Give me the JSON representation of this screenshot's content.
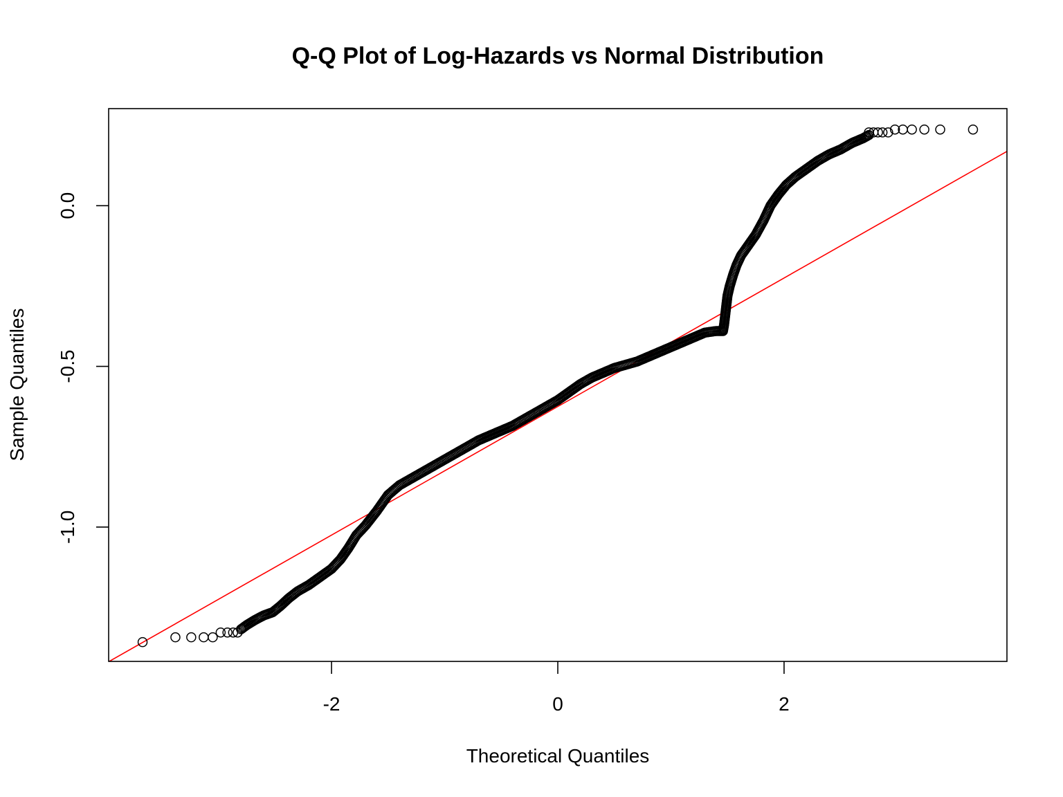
{
  "chart_data": {
    "type": "scatter",
    "title": "Q-Q Plot of Log-Hazards vs Normal Distribution",
    "xlabel": "Theoretical Quantiles",
    "ylabel": "Sample Quantiles",
    "xlim": [
      -3.97,
      3.97
    ],
    "ylim": [
      -1.418,
      0.302
    ],
    "x_ticks": [
      -2,
      0,
      2
    ],
    "x_tick_labels": [
      "-2",
      "0",
      "2"
    ],
    "y_ticks": [
      -1.0,
      -0.5,
      0.0
    ],
    "y_tick_labels": [
      "-1.0",
      "-0.5",
      "0.0"
    ],
    "grid": false,
    "legend": "none",
    "colors": {
      "points": "#000000",
      "reference_line": "#ff0000",
      "frame": "#000000"
    },
    "reference_line": {
      "intercept": -0.625,
      "slope": 0.2
    },
    "outlier_points": [
      {
        "x": -3.67,
        "y": -1.358
      },
      {
        "x": -3.38,
        "y": -1.343
      },
      {
        "x": -3.24,
        "y": -1.343
      },
      {
        "x": -3.13,
        "y": -1.343
      },
      {
        "x": -3.05,
        "y": -1.343
      },
      {
        "x": -2.98,
        "y": -1.328
      },
      {
        "x": -2.92,
        "y": -1.328
      },
      {
        "x": -2.87,
        "y": -1.328
      },
      {
        "x": -2.83,
        "y": -1.328
      },
      {
        "x": 3.67,
        "y": 0.237
      },
      {
        "x": 3.38,
        "y": 0.237
      },
      {
        "x": 3.24,
        "y": 0.237
      },
      {
        "x": 3.13,
        "y": 0.237
      },
      {
        "x": 3.05,
        "y": 0.237
      },
      {
        "x": 2.98,
        "y": 0.237
      },
      {
        "x": 2.92,
        "y": 0.228
      },
      {
        "x": 2.87,
        "y": 0.228
      },
      {
        "x": 2.83,
        "y": 0.228
      },
      {
        "x": 2.79,
        "y": 0.228
      },
      {
        "x": 2.75,
        "y": 0.228
      }
    ],
    "curve_points": [
      {
        "x": -2.8,
        "y": -1.318
      },
      {
        "x": -2.75,
        "y": -1.305
      },
      {
        "x": -2.68,
        "y": -1.29
      },
      {
        "x": -2.6,
        "y": -1.275
      },
      {
        "x": -2.52,
        "y": -1.265
      },
      {
        "x": -2.45,
        "y": -1.245
      },
      {
        "x": -2.38,
        "y": -1.222
      },
      {
        "x": -2.3,
        "y": -1.2
      },
      {
        "x": -2.2,
        "y": -1.18
      },
      {
        "x": -2.1,
        "y": -1.155
      },
      {
        "x": -2.0,
        "y": -1.13
      },
      {
        "x": -1.92,
        "y": -1.1
      },
      {
        "x": -1.85,
        "y": -1.065
      },
      {
        "x": -1.78,
        "y": -1.025
      },
      {
        "x": -1.7,
        "y": -0.995
      },
      {
        "x": -1.6,
        "y": -0.95
      },
      {
        "x": -1.5,
        "y": -0.9
      },
      {
        "x": -1.4,
        "y": -0.87
      },
      {
        "x": -1.3,
        "y": -0.85
      },
      {
        "x": -1.2,
        "y": -0.83
      },
      {
        "x": -1.1,
        "y": -0.81
      },
      {
        "x": -1.0,
        "y": -0.79
      },
      {
        "x": -0.9,
        "y": -0.77
      },
      {
        "x": -0.8,
        "y": -0.75
      },
      {
        "x": -0.7,
        "y": -0.73
      },
      {
        "x": -0.6,
        "y": -0.715
      },
      {
        "x": -0.5,
        "y": -0.7
      },
      {
        "x": -0.4,
        "y": -0.685
      },
      {
        "x": -0.3,
        "y": -0.665
      },
      {
        "x": -0.2,
        "y": -0.645
      },
      {
        "x": -0.1,
        "y": -0.625
      },
      {
        "x": 0.0,
        "y": -0.605
      },
      {
        "x": 0.1,
        "y": -0.58
      },
      {
        "x": 0.2,
        "y": -0.555
      },
      {
        "x": 0.3,
        "y": -0.535
      },
      {
        "x": 0.4,
        "y": -0.52
      },
      {
        "x": 0.5,
        "y": -0.505
      },
      {
        "x": 0.6,
        "y": -0.495
      },
      {
        "x": 0.7,
        "y": -0.485
      },
      {
        "x": 0.8,
        "y": -0.47
      },
      {
        "x": 0.9,
        "y": -0.455
      },
      {
        "x": 1.0,
        "y": -0.44
      },
      {
        "x": 1.1,
        "y": -0.425
      },
      {
        "x": 1.2,
        "y": -0.41
      },
      {
        "x": 1.3,
        "y": -0.395
      },
      {
        "x": 1.4,
        "y": -0.39
      },
      {
        "x": 1.46,
        "y": -0.39
      },
      {
        "x": 1.47,
        "y": -0.37
      },
      {
        "x": 1.48,
        "y": -0.34
      },
      {
        "x": 1.49,
        "y": -0.31
      },
      {
        "x": 1.5,
        "y": -0.28
      },
      {
        "x": 1.52,
        "y": -0.25
      },
      {
        "x": 1.55,
        "y": -0.215
      },
      {
        "x": 1.58,
        "y": -0.185
      },
      {
        "x": 1.62,
        "y": -0.155
      },
      {
        "x": 1.68,
        "y": -0.125
      },
      {
        "x": 1.75,
        "y": -0.09
      },
      {
        "x": 1.82,
        "y": -0.045
      },
      {
        "x": 1.88,
        "y": 0.0
      },
      {
        "x": 1.95,
        "y": 0.035
      },
      {
        "x": 2.02,
        "y": 0.065
      },
      {
        "x": 2.1,
        "y": 0.09
      },
      {
        "x": 2.2,
        "y": 0.115
      },
      {
        "x": 2.3,
        "y": 0.14
      },
      {
        "x": 2.4,
        "y": 0.16
      },
      {
        "x": 2.5,
        "y": 0.175
      },
      {
        "x": 2.6,
        "y": 0.195
      },
      {
        "x": 2.7,
        "y": 0.21
      },
      {
        "x": 2.75,
        "y": 0.22
      }
    ]
  }
}
